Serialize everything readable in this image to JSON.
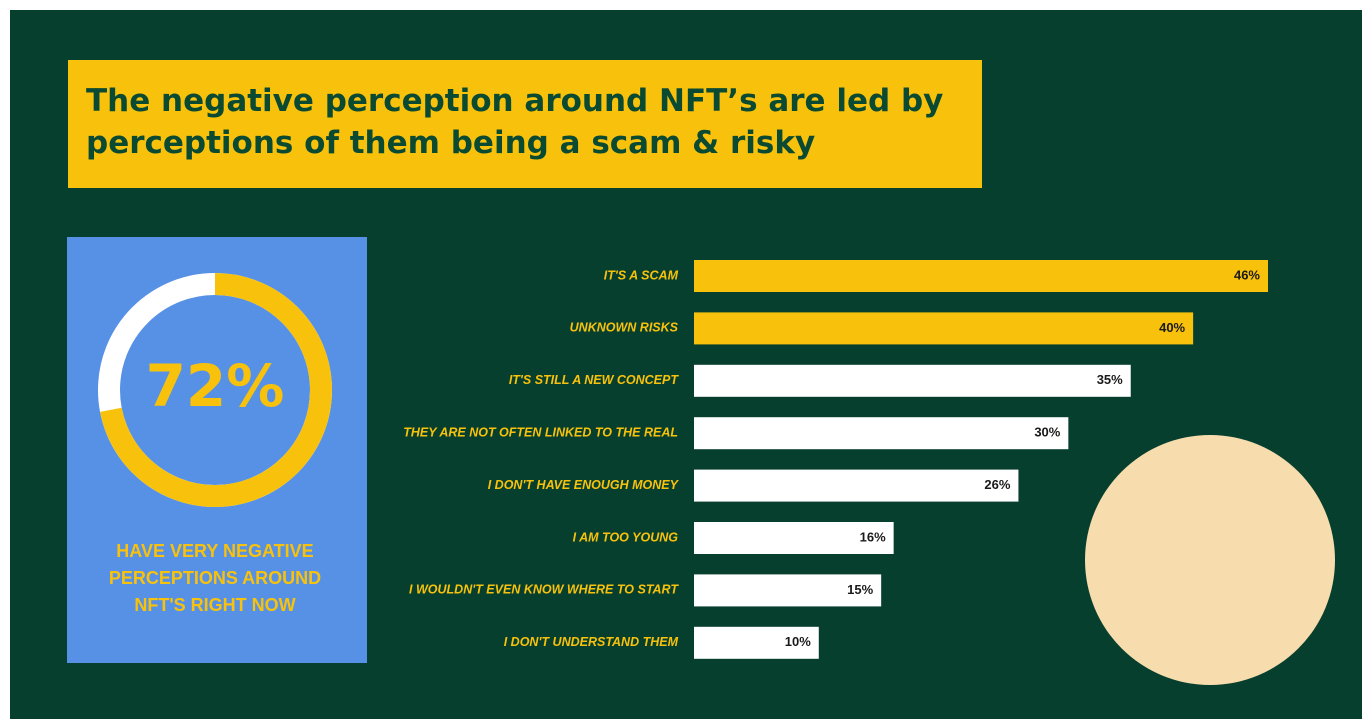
{
  "chart_data": [
    {
      "type": "donut",
      "values": [
        72
      ],
      "value_labels": [
        "72%"
      ],
      "color": "#f8c20c",
      "track_color": "#ffffff",
      "caption": "HAVE VERY NEGATIVE PERCEPTIONS AROUND NFT'S RIGHT NOW"
    },
    {
      "type": "hbar",
      "title": "The negative perception around NFT’s are led by perceptions of them being a scam & risky",
      "categories": [
        "IT'S A SCAM",
        "UNKNOWN RISKS",
        "IT'S STILL A NEW CONCEPT",
        "THEY ARE NOT OFTEN LINKED TO THE REAL",
        "I DON'T HAVE ENOUGH MONEY",
        "I AM TOO YOUNG",
        "I WOULDN'T EVEN KNOW WHERE TO START",
        "I DON'T UNDERSTAND THEM"
      ],
      "values": [
        46,
        40,
        35,
        30,
        26,
        16,
        15,
        10
      ],
      "value_labels": [
        "46%",
        "40%",
        "35%",
        "30%",
        "26%",
        "16%",
        "15%",
        "10%"
      ],
      "colors": [
        "#f8c20c",
        "#f8c20c",
        "#ffffff",
        "#ffffff",
        "#ffffff",
        "#ffffff",
        "#ffffff",
        "#ffffff"
      ]
    }
  ]
}
